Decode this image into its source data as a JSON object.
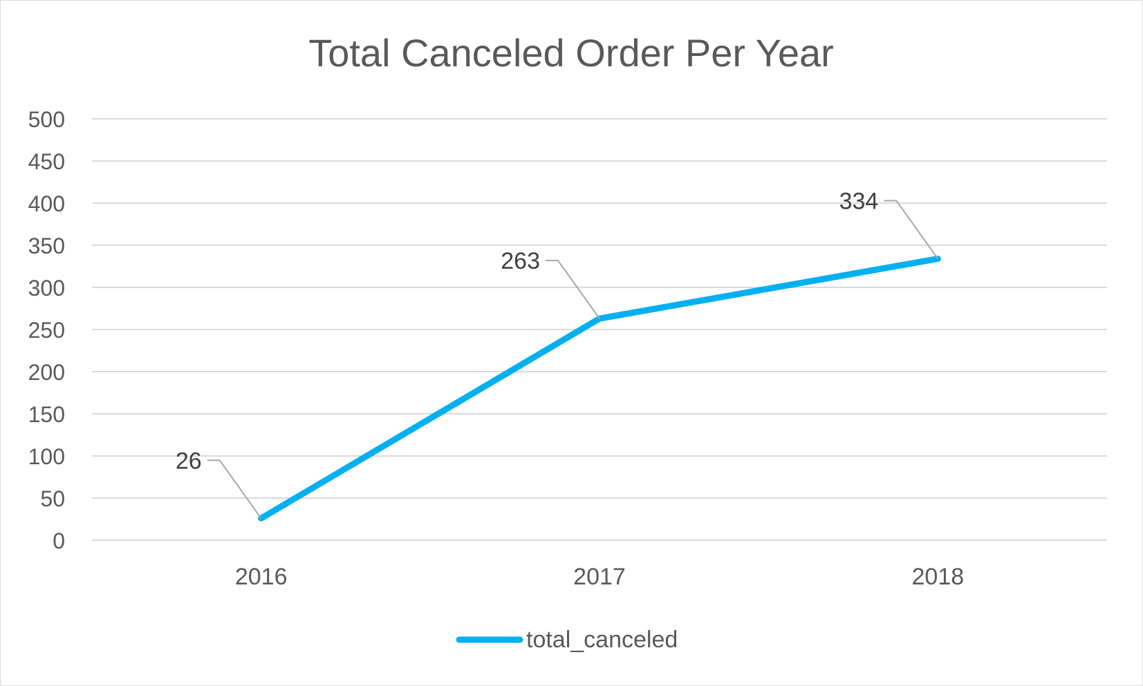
{
  "chart_data": {
    "type": "line",
    "title": "Total Canceled Order Per Year",
    "categories": [
      "2016",
      "2017",
      "2018"
    ],
    "series": [
      {
        "name": "total_canceled",
        "values": [
          26,
          263,
          334
        ],
        "color": "#00b0f0"
      }
    ],
    "ylim": [
      0,
      500
    ],
    "yticks": [
      0,
      50,
      100,
      150,
      200,
      250,
      300,
      350,
      400,
      450,
      500
    ],
    "grid": true,
    "data_labels": true,
    "legend_position": "bottom"
  }
}
